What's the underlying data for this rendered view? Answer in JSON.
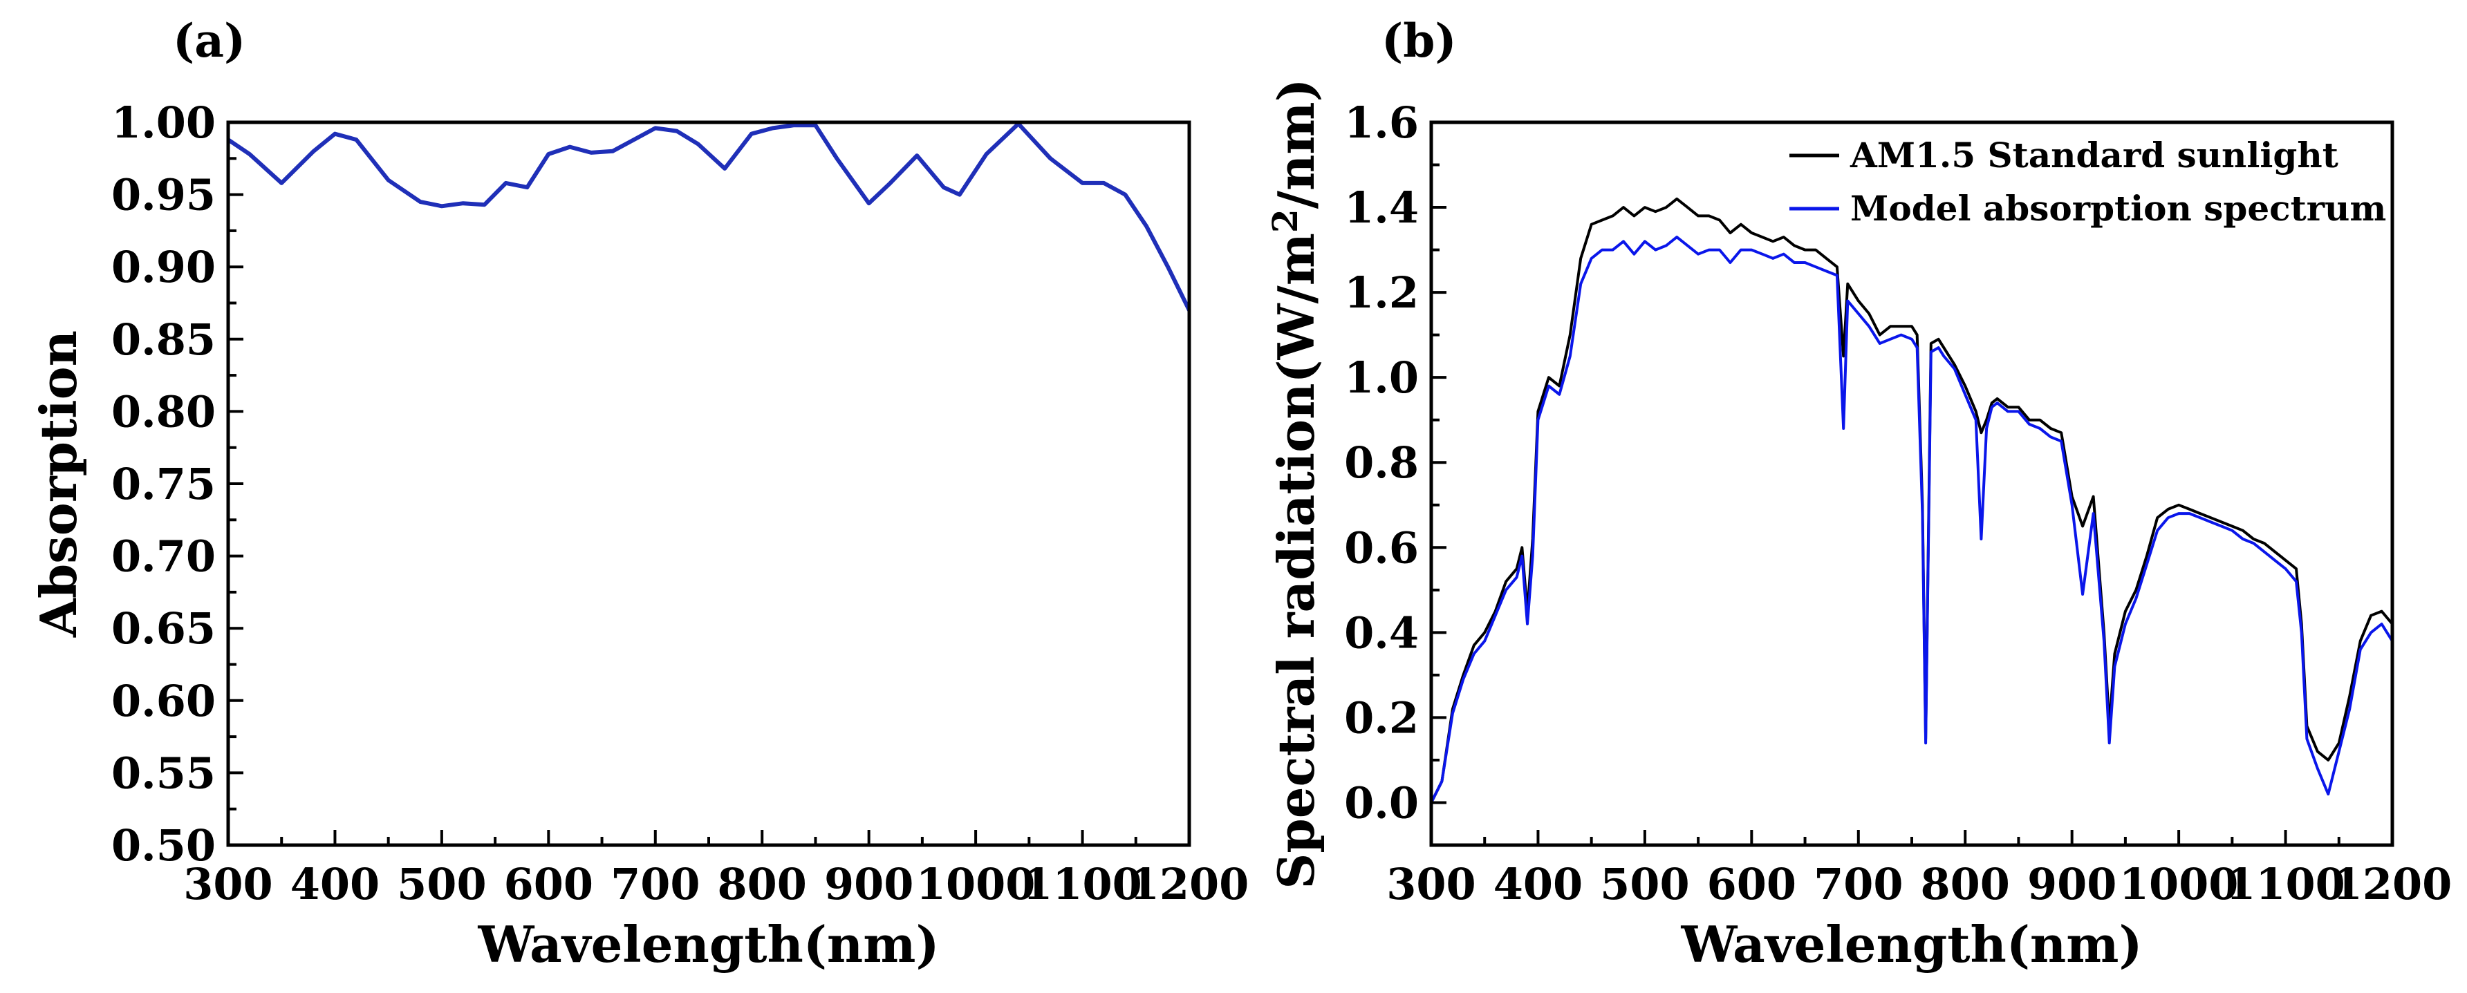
{
  "chart_data": [
    {
      "panel": "(a)",
      "type": "line",
      "xlabel": "Wavelength(nm)",
      "ylabel": "Absorption",
      "xlim": [
        300,
        1200
      ],
      "ylim": [
        0.5,
        1.0
      ],
      "xticks": [
        300,
        400,
        500,
        600,
        700,
        800,
        900,
        1000,
        1100,
        1200
      ],
      "xtick_labels": [
        "300",
        "400",
        "500",
        "600",
        "700",
        "800",
        "900",
        "1000",
        "1100",
        "1200"
      ],
      "yticks": [
        0.5,
        0.55,
        0.6,
        0.65,
        0.7,
        0.75,
        0.8,
        0.85,
        0.9,
        0.95,
        1.0
      ],
      "ytick_labels": [
        "0.50",
        "0.55",
        "0.60",
        "0.65",
        "0.70",
        "0.75",
        "0.80",
        "0.85",
        "0.90",
        "0.95",
        "1.00"
      ],
      "grid": false,
      "series": [
        {
          "name": "Absorption",
          "color": "#1f2fb8",
          "x": [
            300,
            320,
            350,
            380,
            400,
            420,
            450,
            480,
            500,
            520,
            540,
            560,
            580,
            600,
            620,
            640,
            660,
            680,
            700,
            720,
            740,
            765,
            790,
            810,
            830,
            850,
            870,
            900,
            920,
            945,
            970,
            985,
            1010,
            1040,
            1070,
            1100,
            1120,
            1140,
            1160,
            1180,
            1200
          ],
          "values": [
            0.988,
            0.978,
            0.958,
            0.98,
            0.992,
            0.988,
            0.96,
            0.945,
            0.942,
            0.944,
            0.943,
            0.958,
            0.955,
            0.978,
            0.983,
            0.979,
            0.98,
            0.988,
            0.996,
            0.994,
            0.985,
            0.968,
            0.992,
            0.996,
            0.998,
            0.998,
            0.975,
            0.944,
            0.958,
            0.977,
            0.955,
            0.95,
            0.978,
            0.999,
            0.975,
            0.958,
            0.958,
            0.95,
            0.928,
            0.9,
            0.87
          ]
        }
      ]
    },
    {
      "panel": "(b)",
      "type": "line",
      "xlabel": "Wavelength(nm)",
      "ylabel_prefix": "Spectral radiation(W/m",
      "ylabel_sup": "2",
      "ylabel_suffix": "/nm)",
      "xlim": [
        300,
        1200
      ],
      "ylim": [
        -0.1,
        1.6
      ],
      "xticks": [
        300,
        400,
        500,
        600,
        700,
        800,
        900,
        1000,
        1100,
        1200
      ],
      "xtick_labels": [
        "300",
        "400",
        "500",
        "600",
        "700",
        "800",
        "900",
        "1000",
        "1100",
        "1200"
      ],
      "yticks": [
        0.0,
        0.2,
        0.4,
        0.6,
        0.8,
        1.0,
        1.2,
        1.4,
        1.6
      ],
      "ytick_labels": [
        "0.0",
        "0.2",
        "0.4",
        "0.6",
        "0.8",
        "1.0",
        "1.2",
        "1.4",
        "1.6"
      ],
      "grid": false,
      "legend_position": "top-right",
      "series": [
        {
          "name": "AM1.5 Standard sunlight",
          "color": "#000000",
          "x": [
            300,
            310,
            320,
            330,
            340,
            350,
            360,
            370,
            380,
            385,
            390,
            395,
            400,
            410,
            420,
            430,
            440,
            450,
            460,
            470,
            480,
            490,
            500,
            510,
            520,
            530,
            540,
            550,
            560,
            570,
            580,
            590,
            600,
            610,
            620,
            630,
            640,
            650,
            660,
            670,
            680,
            686,
            690,
            700,
            710,
            720,
            730,
            740,
            750,
            755,
            760,
            763,
            768,
            775,
            780,
            790,
            800,
            810,
            815,
            820,
            825,
            830,
            840,
            850,
            860,
            870,
            880,
            890,
            900,
            910,
            920,
            930,
            935,
            940,
            950,
            960,
            970,
            980,
            990,
            1000,
            1010,
            1020,
            1030,
            1040,
            1050,
            1060,
            1070,
            1080,
            1090,
            1100,
            1110,
            1115,
            1120,
            1130,
            1140,
            1150,
            1160,
            1170,
            1180,
            1190,
            1200
          ],
          "values": [
            0.0,
            0.05,
            0.22,
            0.3,
            0.37,
            0.4,
            0.45,
            0.52,
            0.55,
            0.6,
            0.45,
            0.62,
            0.92,
            1.0,
            0.98,
            1.1,
            1.28,
            1.36,
            1.37,
            1.38,
            1.4,
            1.38,
            1.4,
            1.39,
            1.4,
            1.42,
            1.4,
            1.38,
            1.38,
            1.37,
            1.34,
            1.36,
            1.34,
            1.33,
            1.32,
            1.33,
            1.31,
            1.3,
            1.3,
            1.28,
            1.26,
            1.05,
            1.22,
            1.18,
            1.15,
            1.1,
            1.12,
            1.12,
            1.12,
            1.1,
            0.7,
            0.15,
            1.08,
            1.09,
            1.07,
            1.03,
            0.98,
            0.92,
            0.87,
            0.9,
            0.94,
            0.95,
            0.93,
            0.93,
            0.9,
            0.9,
            0.88,
            0.87,
            0.72,
            0.65,
            0.72,
            0.4,
            0.18,
            0.35,
            0.45,
            0.5,
            0.58,
            0.67,
            0.69,
            0.7,
            0.69,
            0.68,
            0.67,
            0.66,
            0.65,
            0.64,
            0.62,
            0.61,
            0.59,
            0.57,
            0.55,
            0.42,
            0.18,
            0.12,
            0.1,
            0.14,
            0.25,
            0.38,
            0.44,
            0.45,
            0.42
          ]
        },
        {
          "name": "Model absorption spectrum",
          "color": "#0a16ea",
          "x": [
            300,
            310,
            320,
            330,
            340,
            350,
            360,
            370,
            380,
            385,
            390,
            395,
            400,
            410,
            420,
            430,
            440,
            450,
            460,
            470,
            480,
            490,
            500,
            510,
            520,
            530,
            540,
            550,
            560,
            570,
            580,
            590,
            600,
            610,
            620,
            630,
            640,
            650,
            660,
            670,
            680,
            686,
            690,
            700,
            710,
            720,
            730,
            740,
            750,
            755,
            760,
            763,
            768,
            775,
            780,
            790,
            800,
            810,
            815,
            820,
            825,
            830,
            840,
            850,
            860,
            870,
            880,
            890,
            900,
            910,
            920,
            930,
            935,
            940,
            950,
            960,
            970,
            980,
            990,
            1000,
            1010,
            1020,
            1030,
            1040,
            1050,
            1060,
            1070,
            1080,
            1090,
            1100,
            1110,
            1115,
            1120,
            1130,
            1140,
            1150,
            1160,
            1170,
            1180,
            1190,
            1200
          ],
          "values": [
            0.0,
            0.05,
            0.21,
            0.29,
            0.35,
            0.38,
            0.44,
            0.5,
            0.53,
            0.58,
            0.42,
            0.58,
            0.9,
            0.98,
            0.96,
            1.05,
            1.22,
            1.28,
            1.3,
            1.3,
            1.32,
            1.29,
            1.32,
            1.3,
            1.31,
            1.33,
            1.31,
            1.29,
            1.3,
            1.3,
            1.27,
            1.3,
            1.3,
            1.29,
            1.28,
            1.29,
            1.27,
            1.27,
            1.26,
            1.25,
            1.24,
            0.88,
            1.18,
            1.15,
            1.12,
            1.08,
            1.09,
            1.1,
            1.09,
            1.07,
            0.68,
            0.14,
            1.06,
            1.07,
            1.05,
            1.02,
            0.96,
            0.9,
            0.62,
            0.88,
            0.93,
            0.94,
            0.92,
            0.92,
            0.89,
            0.88,
            0.86,
            0.85,
            0.7,
            0.49,
            0.68,
            0.38,
            0.14,
            0.32,
            0.42,
            0.48,
            0.56,
            0.64,
            0.67,
            0.68,
            0.68,
            0.67,
            0.66,
            0.65,
            0.64,
            0.62,
            0.61,
            0.59,
            0.57,
            0.55,
            0.52,
            0.4,
            0.15,
            0.08,
            0.02,
            0.12,
            0.22,
            0.36,
            0.4,
            0.42,
            0.38
          ]
        }
      ]
    }
  ]
}
